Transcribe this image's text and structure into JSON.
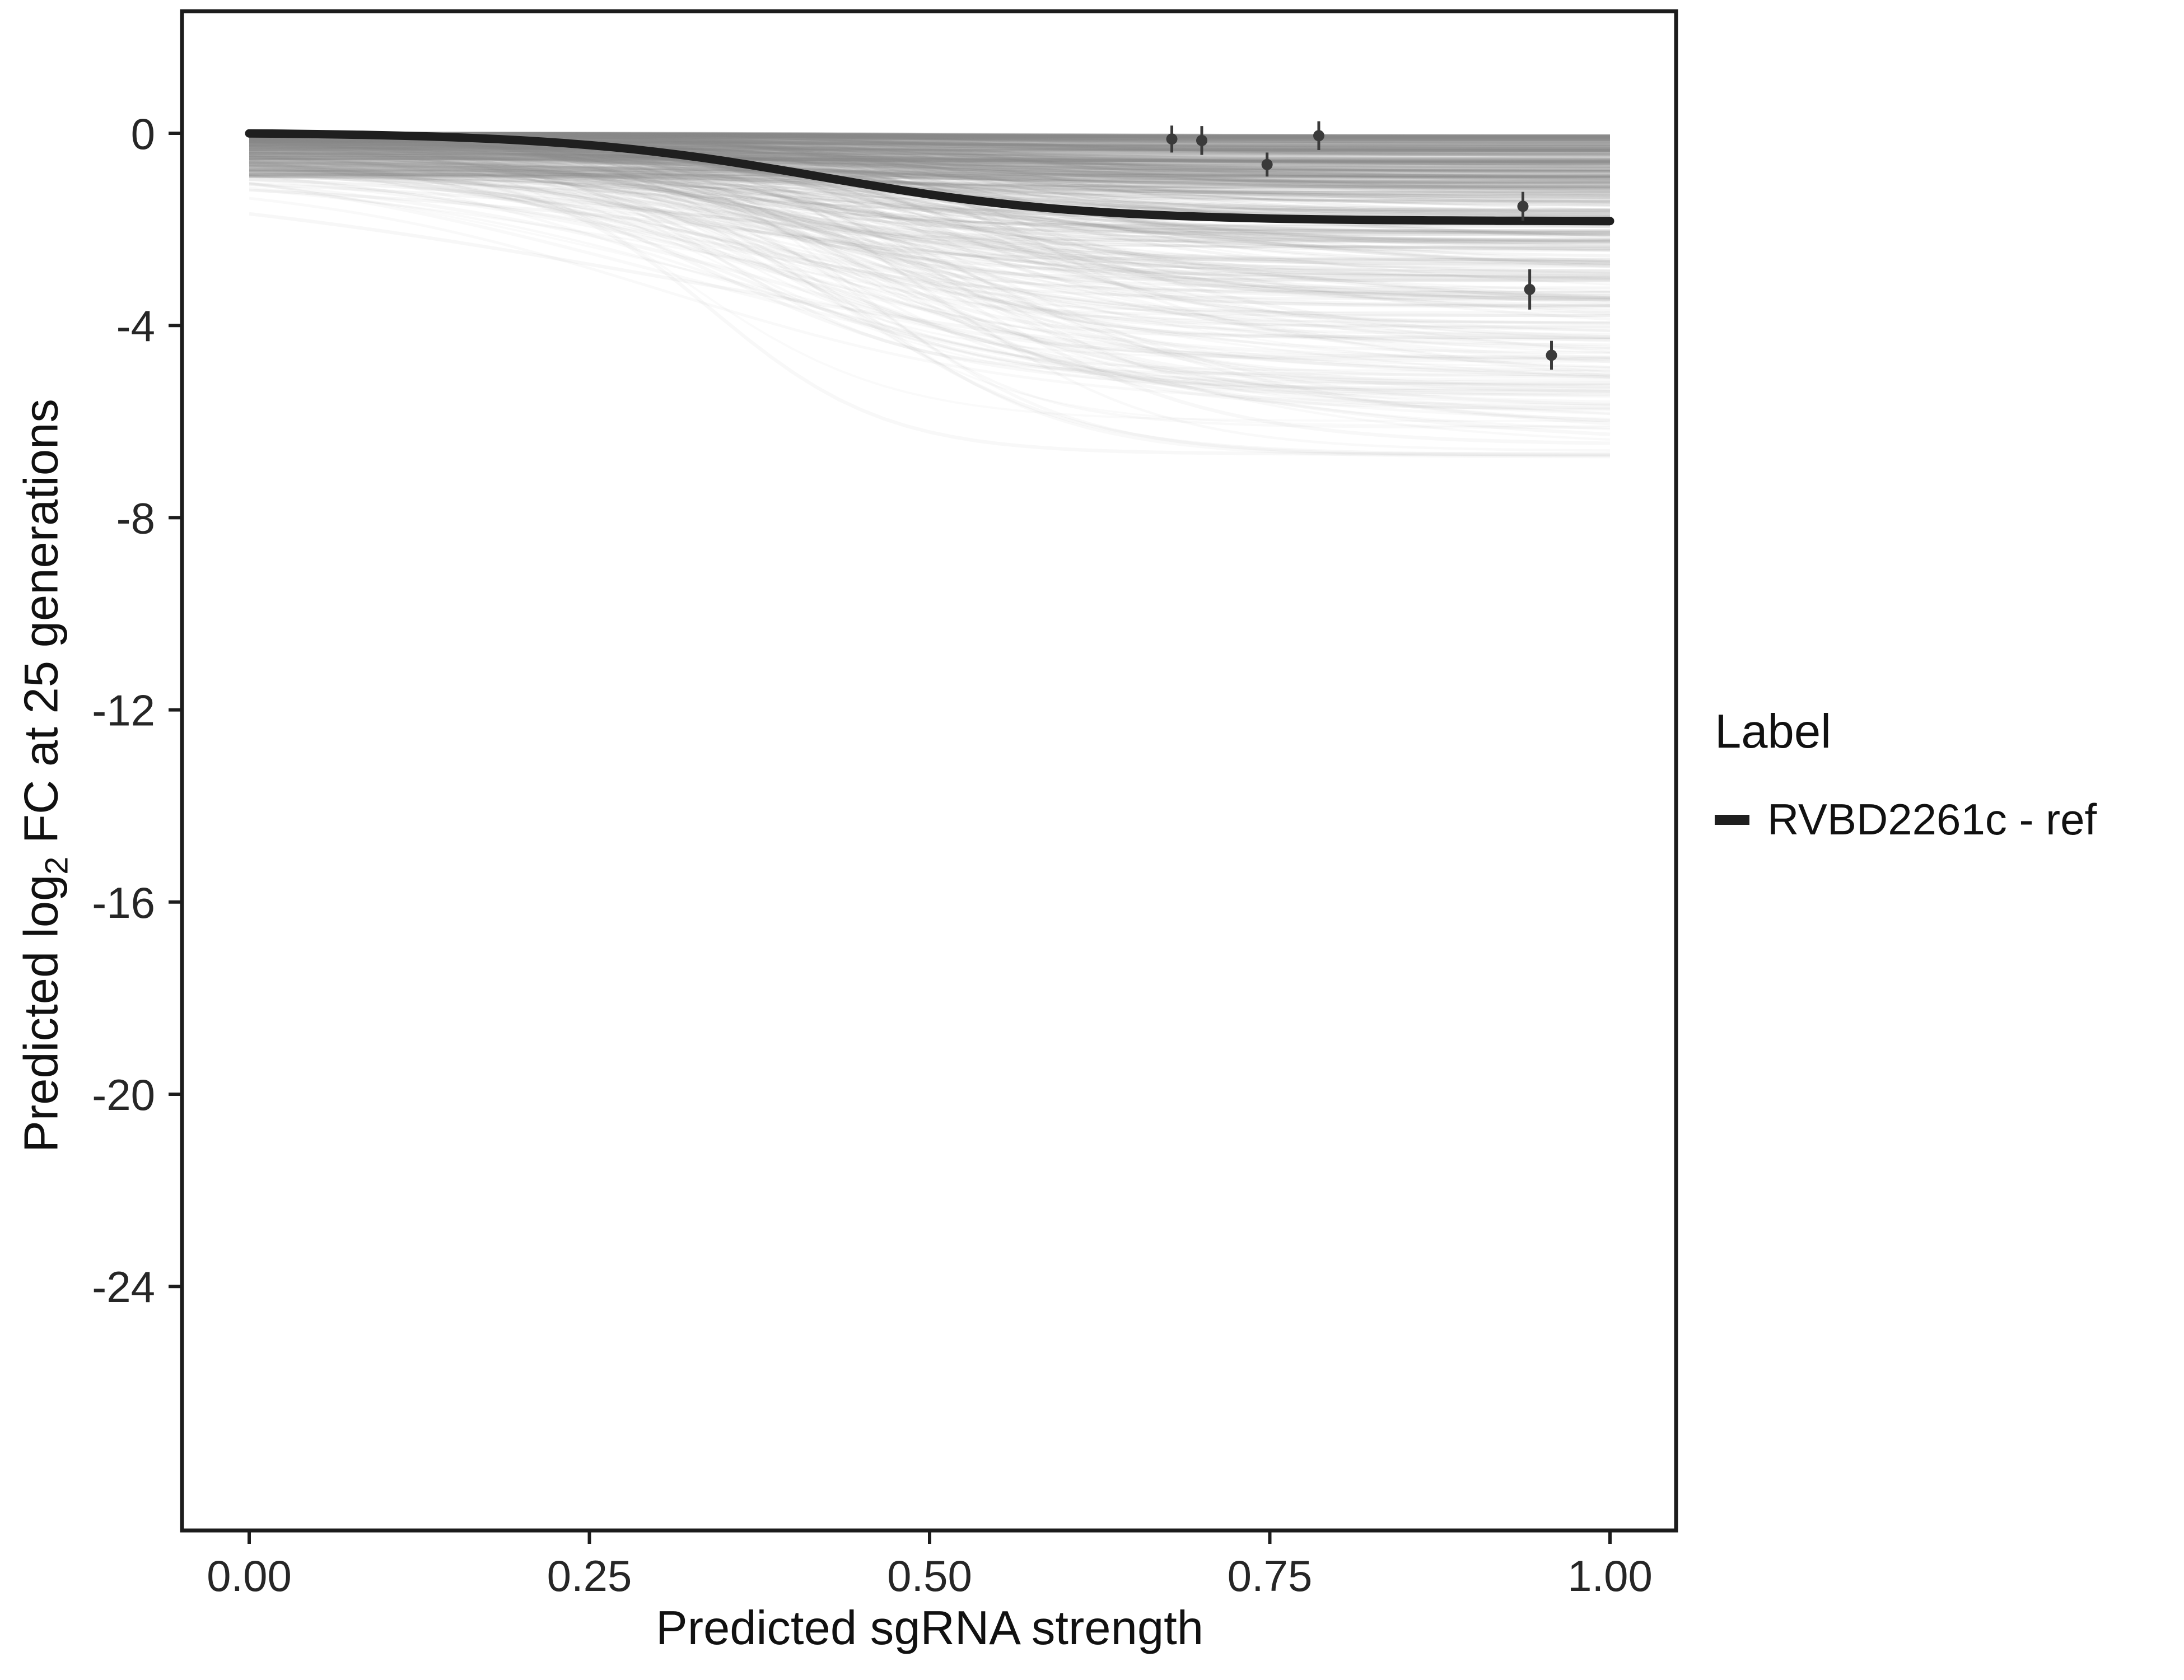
{
  "page": {
    "background": "#ffffff"
  },
  "chart_data": {
    "type": "line",
    "title": "",
    "xlabel": "Predicted sgRNA strength",
    "ylabel": "Predicted log2 FC at 25 generations",
    "ylabel_parts": {
      "prefix": "Predicted  log",
      "sub": "2",
      "suffix": " FC at 25 generations"
    },
    "x_domain": [
      0,
      1
    ],
    "y_domain": [
      -29,
      2.5
    ],
    "x_ticks": {
      "values": [
        0,
        0.25,
        0.5,
        0.75,
        1
      ],
      "labels": [
        "0.00",
        "0.25",
        "0.50",
        "0.75",
        "1.00"
      ]
    },
    "y_ticks": {
      "values": [
        0,
        -4,
        -8,
        -12,
        -16,
        -20,
        -24
      ],
      "labels": [
        "0",
        "-4",
        "-8",
        "-12",
        "-16",
        "-20",
        "-24"
      ]
    },
    "grid": "off",
    "legend_position": "right",
    "legend": {
      "title": "Label",
      "entries": [
        {
          "label": "RVBD2261c - ref",
          "color": "#1f1f1f",
          "key": "thick-line"
        }
      ]
    },
    "main_series": {
      "name": "RVBD2261c - ref",
      "color": "#1f1f1f",
      "linewidth": 15,
      "curve": {
        "shape": "sigmoid",
        "depth": 1.85,
        "x0": 0.42,
        "k": 10.5,
        "offset": 0.02
      }
    },
    "ensemble": {
      "count": 420,
      "seed": 7,
      "color": "#8a8a8a",
      "depth_range": [
        0.05,
        6.3
      ],
      "x0_range": [
        0.3,
        0.58
      ],
      "k_range": [
        4,
        16
      ],
      "offset_range": [
        0,
        -0.9
      ]
    },
    "points": {
      "color": "#3a3a3a",
      "items": [
        {
          "x": 0.678,
          "y": -0.12,
          "err": 0.28
        },
        {
          "x": 0.7,
          "y": -0.15,
          "err": 0.3
        },
        {
          "x": 0.748,
          "y": -0.65,
          "err": 0.25
        },
        {
          "x": 0.786,
          "y": -0.05,
          "err": 0.3
        },
        {
          "x": 0.936,
          "y": -1.52,
          "err": 0.3
        },
        {
          "x": 0.941,
          "y": -3.25,
          "err": 0.42
        },
        {
          "x": 0.957,
          "y": -4.62,
          "err": 0.3
        }
      ]
    },
    "axis": {
      "color": "#1c1c1c",
      "tick_color": "#1c1c1c",
      "text_color": "#262626",
      "tick_font_size": 78
    }
  }
}
